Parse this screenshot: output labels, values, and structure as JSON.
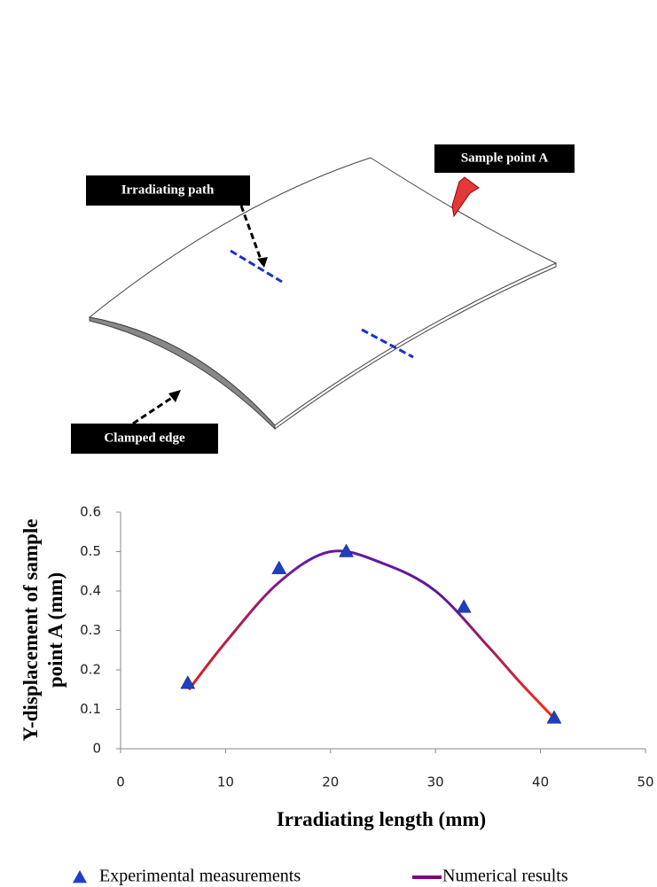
{
  "diagram": {
    "labels": [
      "Sample point A",
      "Irradiating path",
      "Clamped edge"
    ]
  },
  "chart_data": {
    "type": "line",
    "x_label": "Irradiating length (mm)",
    "y_label": [
      "Y-displacement of sample",
      "point A (mm)"
    ],
    "xlim": [
      0,
      50
    ],
    "xticks": [
      0,
      10,
      20,
      30,
      40,
      50
    ],
    "ylim": [
      0,
      0.6
    ],
    "yticks": [
      0,
      0.1,
      0.2,
      0.3,
      0.4,
      0.5,
      0.6
    ],
    "grid": false,
    "legend": "bottom",
    "series": [
      {
        "name": "Experimental measurements",
        "kind": "scatter",
        "color": "#1f3fbf",
        "x": [
          6.4,
          15.1,
          21.5,
          32.7,
          41.3
        ],
        "values": [
          0.167,
          0.458,
          0.501,
          0.36,
          0.079
        ]
      },
      {
        "name": "Numerical results",
        "kind": "line",
        "color": "#800080",
        "x": [
          6.5,
          10,
          15,
          20,
          25,
          30,
          35,
          38,
          41.2
        ],
        "values": [
          0.15,
          0.27,
          0.42,
          0.5,
          0.47,
          0.4,
          0.26,
          0.17,
          0.08
        ]
      }
    ]
  }
}
